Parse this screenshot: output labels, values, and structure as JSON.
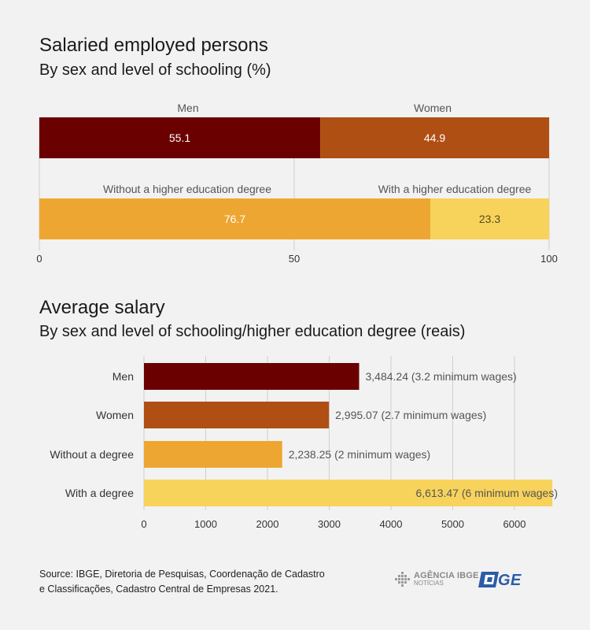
{
  "chart_data": [
    {
      "type": "bar",
      "orientation": "horizontal-stacked",
      "title": "Salaried employed persons",
      "subtitle": "By sex and level of schooling (%)",
      "xlim": [
        0,
        100
      ],
      "xticks": [
        "0",
        "50",
        "100"
      ],
      "grid": true,
      "rows": [
        {
          "segments": [
            {
              "name": "Men",
              "value": 55.1,
              "label": "55.1",
              "color": "#6b0000"
            },
            {
              "name": "Women",
              "value": 44.9,
              "label": "44.9",
              "color": "#b04f14"
            }
          ]
        },
        {
          "segments": [
            {
              "name": "Without a higher education degree",
              "value": 76.7,
              "label": "76.7",
              "color": "#eea632"
            },
            {
              "name": "With a higher education degree",
              "value": 23.3,
              "label": "23.3",
              "color": "#f7d35b"
            }
          ]
        }
      ]
    },
    {
      "type": "bar",
      "orientation": "horizontal",
      "title": "Average salary",
      "subtitle": "By sex and level of schooling/higher education degree (reais)",
      "xlim": [
        0,
        6600
      ],
      "xticks": [
        "0",
        "1000",
        "2000",
        "3000",
        "4000",
        "5000",
        "6000"
      ],
      "grid": true,
      "categories": [
        "Men",
        "Women",
        "Without a degree",
        "With a degree"
      ],
      "values": [
        3484.24,
        2995.07,
        2238.25,
        6613.47
      ],
      "labels": [
        "3,484.24 (3.2 minimum wages)",
        "2,995.07 (2.7 minimum wages)",
        "2,238.25 (2 minimum wages)",
        "6,613.47 (6 minimum wages)"
      ],
      "colors": [
        "#6b0000",
        "#b04f14",
        "#eea632",
        "#f7d35b"
      ]
    }
  ],
  "source": {
    "line1": "Source: IBGE, Diretoria de Pesquisas, Coordenação de Cadastro",
    "line2": "e Classificações, Cadastro Central de Empresas 2021."
  },
  "logos": {
    "agencia_line1": "AGÊNCIA IBGE",
    "agencia_line2": "NOTÍCIAS",
    "agencia_icon": "agencia-ibge-grid-icon",
    "ibge_text": "IBGE",
    "ibge_icon": "ibge-flag-icon",
    "ibge_color": "#2b5ca8"
  }
}
